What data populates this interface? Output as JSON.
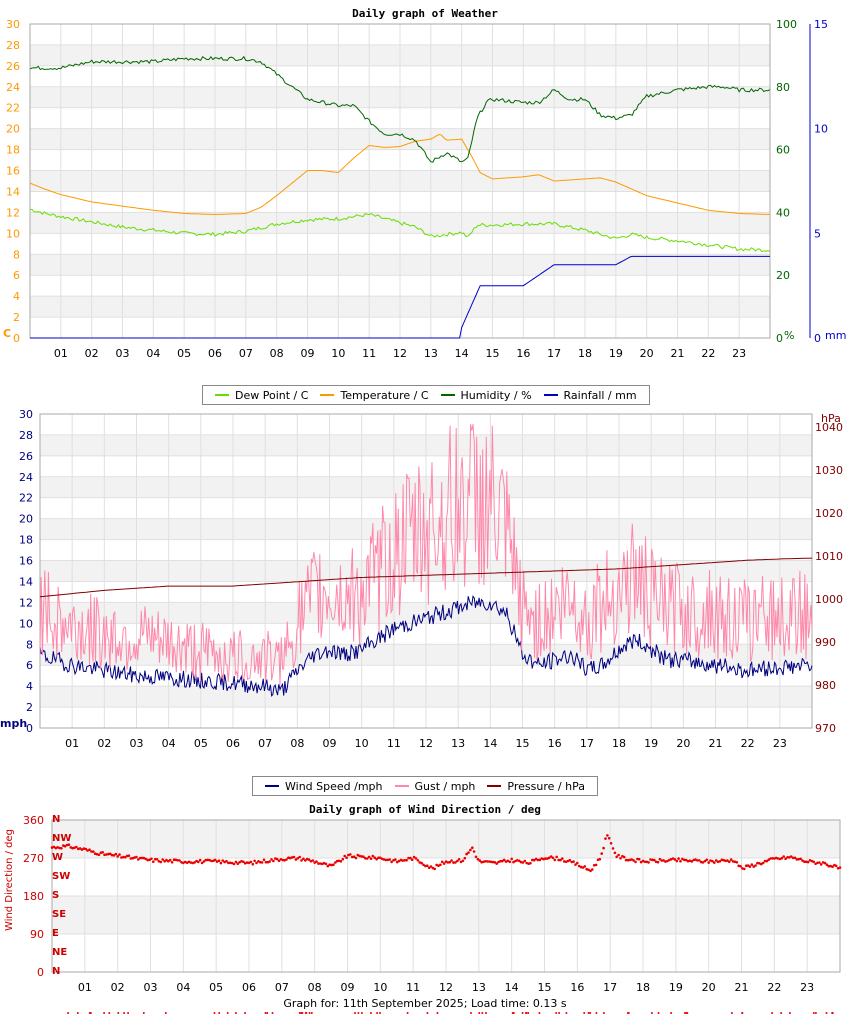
{
  "chart_data": [
    {
      "type": "line",
      "title": "Daily graph of Weather",
      "x_ticks": [
        "01",
        "02",
        "03",
        "04",
        "05",
        "06",
        "07",
        "08",
        "09",
        "10",
        "11",
        "12",
        "13",
        "14",
        "15",
        "16",
        "17",
        "18",
        "19",
        "20",
        "21",
        "22",
        "23"
      ],
      "xlim": [
        0,
        24
      ],
      "y_left": {
        "label": "C",
        "ticks": [
          0,
          2,
          4,
          6,
          8,
          10,
          12,
          14,
          16,
          18,
          20,
          22,
          24,
          26,
          28,
          30
        ],
        "ylim": [
          0,
          30
        ],
        "color": "#ff9900"
      },
      "y_right1": {
        "label": "%",
        "ticks": [
          0,
          20,
          40,
          60,
          80,
          100
        ],
        "ylim": [
          0,
          100
        ],
        "color": "#006600"
      },
      "y_right2": {
        "label": "mm",
        "ticks": [
          0,
          5,
          10,
          15
        ],
        "ylim": [
          0,
          15
        ],
        "color": "#0000cc"
      },
      "series": [
        {
          "name": "Dew Point / C",
          "axis": "left",
          "color": "#66dd00",
          "x": [
            0,
            0.5,
            1,
            2,
            3,
            4,
            5,
            6,
            7,
            8,
            9,
            10,
            10.5,
            11,
            11.5,
            12,
            12.5,
            13,
            13.5,
            14,
            14.2,
            14.5,
            15,
            16,
            17,
            17.5,
            18,
            18.5,
            19,
            19.5,
            20,
            21,
            22,
            23,
            24
          ],
          "y": [
            12.3,
            11.9,
            11.6,
            11.1,
            10.6,
            10.3,
            10.0,
            9.9,
            10.2,
            10.9,
            11.3,
            11.4,
            11.6,
            11.8,
            11.4,
            11.0,
            10.6,
            9.7,
            9.9,
            10.1,
            9.6,
            10.8,
            10.8,
            10.9,
            10.9,
            10.6,
            10.3,
            9.9,
            9.5,
            9.9,
            9.6,
            9.3,
            8.9,
            8.5,
            8.4
          ]
        },
        {
          "name": "Temperature / C",
          "axis": "left",
          "color": "#ff9900",
          "x": [
            0,
            0.5,
            1,
            2,
            3,
            4,
            5,
            6,
            7,
            7.5,
            8,
            8.5,
            9,
            9.5,
            10,
            10.5,
            11,
            11.5,
            12,
            12.5,
            13,
            13.3,
            13.5,
            14,
            14.3,
            14.6,
            15,
            16,
            16.5,
            17,
            18,
            18.5,
            19,
            20,
            21,
            22,
            23,
            24
          ],
          "y": [
            14.8,
            14.2,
            13.7,
            13.0,
            12.6,
            12.2,
            11.9,
            11.8,
            11.9,
            12.5,
            13.6,
            14.8,
            16.0,
            16.0,
            15.8,
            17.2,
            18.4,
            18.2,
            18.3,
            18.8,
            19.0,
            19.5,
            18.9,
            19.0,
            17.5,
            15.8,
            15.2,
            15.4,
            15.6,
            15.0,
            15.2,
            15.3,
            14.9,
            13.6,
            12.9,
            12.2,
            11.9,
            11.8
          ]
        },
        {
          "name": "Humidity / %",
          "axis": "right1",
          "color": "#006600",
          "x": [
            0,
            1,
            1.5,
            2,
            3,
            4,
            5,
            6,
            7,
            7.5,
            8,
            8.5,
            9,
            9.5,
            10,
            10.5,
            11,
            11.5,
            12,
            12.5,
            13,
            13.5,
            14,
            14.2,
            14.5,
            14.8,
            15,
            16,
            16.5,
            17,
            17.5,
            18,
            18.5,
            19,
            19.5,
            20,
            21,
            22,
            22.5,
            23,
            24
          ],
          "y": [
            86,
            86,
            87,
            88,
            88,
            88,
            89,
            89,
            89,
            88,
            84,
            80,
            76,
            75,
            74,
            74,
            69,
            65,
            65,
            63,
            56,
            59,
            56,
            57,
            70,
            75,
            76,
            75,
            75,
            79,
            76,
            76,
            71,
            70,
            71,
            77,
            79,
            80,
            80,
            79,
            79
          ]
        },
        {
          "name": "Rainfall / mm",
          "axis": "right2",
          "color": "#0000cc",
          "x": [
            0,
            13.95,
            14,
            14.3,
            14.6,
            15,
            16,
            16.7,
            17,
            18,
            19,
            19.5,
            20,
            21,
            22,
            23,
            24
          ],
          "y": [
            0,
            0,
            0.5,
            1.5,
            2.5,
            2.5,
            2.5,
            3.2,
            3.5,
            3.5,
            3.5,
            3.9,
            3.9,
            3.9,
            3.9,
            3.9,
            3.9
          ]
        }
      ],
      "legend": [
        "Dew Point / C",
        "Temperature / C",
        "Humidity / %",
        "Rainfall / mm"
      ],
      "legend_position": "bottom",
      "grid": true
    },
    {
      "type": "line",
      "title": "",
      "x_ticks": [
        "01",
        "02",
        "03",
        "04",
        "05",
        "06",
        "07",
        "08",
        "09",
        "10",
        "11",
        "12",
        "13",
        "14",
        "15",
        "16",
        "17",
        "18",
        "19",
        "20",
        "21",
        "22",
        "23"
      ],
      "xlim": [
        0,
        24
      ],
      "y_left": {
        "label": "mph",
        "ticks": [
          0,
          2,
          4,
          6,
          8,
          10,
          12,
          14,
          16,
          18,
          20,
          22,
          24,
          26,
          28,
          30
        ],
        "ylim": [
          0,
          30
        ],
        "color": "#000080"
      },
      "y_right": {
        "label": "hPa",
        "ticks": [
          970,
          980,
          990,
          1000,
          1010,
          1020,
          1030,
          1040
        ],
        "ylim": [
          970,
          1043
        ],
        "color": "#800000"
      },
      "series": [
        {
          "name": "Wind Speed /mph",
          "axis": "left",
          "color": "#000080",
          "x": [
            0,
            0.5,
            1,
            2,
            3,
            4,
            5,
            6,
            7,
            7.5,
            8,
            8.5,
            9,
            9.5,
            10,
            10.5,
            11,
            11.5,
            12,
            12.5,
            13,
            13.5,
            14,
            14.5,
            15,
            15.5,
            16,
            16.5,
            17,
            17.5,
            18,
            18.5,
            19,
            19.5,
            20,
            21,
            22,
            23,
            24
          ],
          "y": [
            7.0,
            6.5,
            6.0,
            5.5,
            5.0,
            4.8,
            4.5,
            4.3,
            4.0,
            3.5,
            5.5,
            7.0,
            7.5,
            7.0,
            7.5,
            8.5,
            9.5,
            10.0,
            10.5,
            11.0,
            11.5,
            12.0,
            12.0,
            11.0,
            7.0,
            6.0,
            6.5,
            7.0,
            5.5,
            6.0,
            7.5,
            8.5,
            7.5,
            6.5,
            6.5,
            6.0,
            5.5,
            5.8,
            6.0
          ]
        },
        {
          "name": "Gust / mph",
          "axis": "left",
          "color": "#ff88aa",
          "x": [
            0,
            0.5,
            1,
            2,
            3,
            4,
            5,
            6,
            7,
            7.5,
            8,
            8.5,
            9,
            9.5,
            10,
            10.5,
            11,
            11.5,
            12,
            12.5,
            13,
            13.5,
            14,
            14.5,
            15,
            15.5,
            16,
            16.5,
            17,
            17.5,
            18,
            18.5,
            19,
            19.5,
            20,
            21,
            22,
            23,
            24
          ],
          "y": [
            10.0,
            9.0,
            8.5,
            8.0,
            7.5,
            7.0,
            6.5,
            6.0,
            6.0,
            5.5,
            9.0,
            11.0,
            11.5,
            11.0,
            11.5,
            13.0,
            15.0,
            16.0,
            17.0,
            18.0,
            19.0,
            19.5,
            19.0,
            16.0,
            10.0,
            9.0,
            10.0,
            11.0,
            9.0,
            10.5,
            12.0,
            13.0,
            11.0,
            10.0,
            10.0,
            9.5,
            9.0,
            9.5,
            9.5
          ]
        },
        {
          "name": "Pressure / hPa",
          "axis": "right",
          "color": "#800000",
          "x": [
            0,
            2,
            4,
            6,
            8,
            10,
            12,
            14,
            16,
            18,
            20,
            22,
            23,
            24
          ],
          "y": [
            1000.5,
            1002,
            1003,
            1003,
            1004,
            1005,
            1005.5,
            1006,
            1006.5,
            1007,
            1008,
            1009,
            1009.3,
            1009.5
          ]
        }
      ],
      "legend": [
        "Wind Speed /mph",
        "Gust / mph",
        "Pressure / hPa"
      ],
      "legend_position": "bottom",
      "grid": true
    },
    {
      "type": "scatter",
      "title": "Daily graph of Wind Direction / deg",
      "x_ticks": [
        "01",
        "02",
        "03",
        "04",
        "05",
        "06",
        "07",
        "08",
        "09",
        "10",
        "11",
        "12",
        "13",
        "14",
        "15",
        "16",
        "17",
        "18",
        "19",
        "20",
        "21",
        "22",
        "23"
      ],
      "xlim": [
        0,
        24
      ],
      "y_left": {
        "label": "Wind Direction / deg",
        "ticks": [
          0,
          90,
          180,
          270,
          360
        ],
        "ylim": [
          0,
          360
        ],
        "color": "#cc0000"
      },
      "compass_labels": [
        "N",
        "NE",
        "E",
        "SE",
        "S",
        "SW",
        "W",
        "NW",
        "N"
      ],
      "series": [
        {
          "name": "Wind Direction",
          "color": "#ee0000",
          "x": [
            0,
            0.5,
            1,
            1.5,
            2,
            3,
            4,
            5,
            6,
            7,
            7.5,
            8,
            8.5,
            9,
            9.5,
            10,
            10.5,
            11,
            11.3,
            11.6,
            12,
            12.5,
            12.8,
            13,
            13.5,
            14,
            14.5,
            15,
            15.5,
            16,
            16.4,
            16.7,
            16.9,
            17.2,
            17.5,
            18,
            19,
            20,
            20.8,
            21,
            22,
            22.5,
            23,
            23.5,
            24
          ],
          "y": [
            295,
            298,
            290,
            280,
            275,
            265,
            262,
            262,
            258,
            268,
            270,
            262,
            250,
            275,
            272,
            270,
            262,
            270,
            258,
            245,
            262,
            264,
            295,
            262,
            258,
            265,
            258,
            272,
            268,
            255,
            240,
            270,
            325,
            275,
            268,
            262,
            265,
            262,
            265,
            245,
            268,
            272,
            262,
            258,
            245
          ]
        }
      ],
      "grid": true
    }
  ],
  "footer": {
    "text": "Graph for: 11th September 2025; Load time: 0.13 s"
  }
}
